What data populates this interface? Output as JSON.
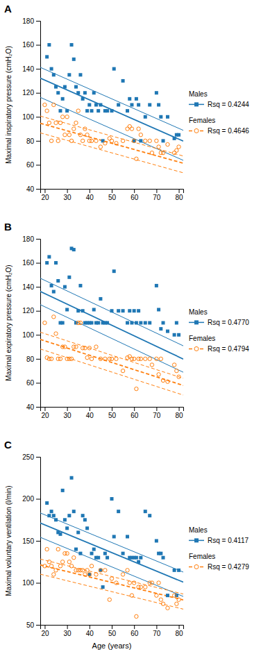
{
  "chart_data": [
    {
      "type": "scatter",
      "title": "A",
      "ylabel": "Maximal inspiratory pressure (cmH₂O)",
      "xlim": [
        18,
        82
      ],
      "xticks": [
        20,
        30,
        40,
        50,
        60,
        70,
        80
      ],
      "ylim": [
        40,
        180
      ],
      "yticks": [
        40,
        60,
        80,
        100,
        120,
        140,
        160,
        180
      ],
      "series": [
        {
          "name": "Males",
          "marker": "square",
          "line_style": "solid",
          "annotation": "Rsq = 0.4244",
          "x": [
            21,
            22,
            23,
            24,
            25,
            26,
            27,
            28,
            29,
            30,
            31,
            32,
            33,
            34,
            35,
            36,
            37,
            38,
            39,
            40,
            41,
            42,
            43,
            44,
            45,
            46,
            47,
            48,
            50,
            51,
            53,
            55,
            57,
            58,
            59,
            60,
            61,
            62,
            63,
            65,
            67,
            70,
            71,
            72,
            73,
            75,
            78,
            79,
            80
          ],
          "values": [
            150,
            160,
            140,
            135,
            125,
            120,
            105,
            115,
            125,
            105,
            135,
            160,
            148,
            125,
            120,
            135,
            115,
            120,
            105,
            110,
            105,
            120,
            110,
            105,
            110,
            80,
            105,
            105,
            105,
            140,
            110,
            130,
            105,
            115,
            110,
            80,
            115,
            110,
            80,
            100,
            110,
            120,
            110,
            100,
            80,
            100,
            82,
            85,
            85
          ],
          "fit": {
            "slope": -0.82,
            "intercept": 147.0,
            "ci_upper_intercept": 156.0,
            "ci_lower_intercept": 131.0
          }
        },
        {
          "name": "Females",
          "marker": "open-circle",
          "line_style": "dashed",
          "annotation": "Rsq = 0.4646",
          "x": [
            20,
            21,
            22,
            23,
            24,
            25,
            26,
            27,
            28,
            29,
            30,
            31,
            32,
            33,
            34,
            35,
            36,
            37,
            38,
            39,
            40,
            41,
            43,
            45,
            47,
            49,
            50,
            52,
            55,
            57,
            58,
            59,
            60,
            61,
            62,
            63,
            65,
            67,
            68,
            70,
            71,
            72,
            73,
            75,
            78,
            79,
            80
          ],
          "values": [
            110,
            105,
            95,
            80,
            110,
            95,
            80,
            95,
            100,
            85,
            100,
            85,
            80,
            90,
            95,
            105,
            85,
            80,
            90,
            85,
            80,
            80,
            80,
            75,
            78,
            82,
            80,
            78,
            80,
            90,
            92,
            90,
            80,
            65,
            90,
            85,
            80,
            80,
            70,
            80,
            75,
            70,
            70,
            77,
            70,
            72,
            75
          ],
          "fit": {
            "slope": -0.52,
            "intercept": 104.0,
            "ci_upper_intercept": 110.0,
            "ci_lower_intercept": 96.0
          }
        }
      ]
    },
    {
      "type": "scatter",
      "title": "B",
      "ylabel": "Maximal expiratory pressure (cmH₂O)",
      "xlim": [
        18,
        82
      ],
      "xticks": [
        20,
        30,
        40,
        50,
        60,
        70,
        80
      ],
      "ylim": [
        40,
        180
      ],
      "yticks": [
        40,
        60,
        80,
        100,
        120,
        140,
        160,
        180
      ],
      "series": [
        {
          "name": "Males",
          "marker": "square",
          "line_style": "solid",
          "annotation": "Rsq = 0.4770",
          "x": [
            21,
            22,
            23,
            24,
            25,
            26,
            27,
            28,
            29,
            30,
            31,
            32,
            33,
            34,
            35,
            36,
            37,
            38,
            39,
            40,
            41,
            42,
            43,
            44,
            45,
            46,
            47,
            48,
            50,
            51,
            53,
            55,
            57,
            58,
            59,
            60,
            61,
            62,
            63,
            65,
            67,
            70,
            71,
            72,
            73,
            75,
            78,
            79,
            80
          ],
          "values": [
            160,
            165,
            141,
            136,
            160,
            145,
            110,
            110,
            140,
            121,
            148,
            172,
            171,
            110,
            120,
            141,
            120,
            110,
            110,
            110,
            110,
            121,
            110,
            110,
            130,
            110,
            110,
            110,
            120,
            153,
            120,
            120,
            110,
            120,
            110,
            120,
            110,
            120,
            110,
            110,
            110,
            141,
            121,
            105,
            110,
            103,
            100,
            110,
            100
          ],
          "fit": {
            "slope": -0.88,
            "intercept": 152.0,
            "ci_upper_intercept": 163.0,
            "ci_lower_intercept": 141.0
          }
        },
        {
          "name": "Females",
          "marker": "open-circle",
          "line_style": "dashed",
          "annotation": "Rsq = 0.4794",
          "x": [
            20,
            21,
            22,
            23,
            24,
            25,
            26,
            27,
            28,
            29,
            30,
            31,
            32,
            33,
            34,
            35,
            36,
            37,
            38,
            39,
            40,
            41,
            43,
            45,
            47,
            49,
            50,
            52,
            55,
            57,
            58,
            59,
            60,
            61,
            62,
            63,
            65,
            67,
            68,
            70,
            71,
            72,
            73,
            75,
            78,
            79,
            80
          ],
          "values": [
            110,
            81,
            80,
            80,
            115,
            101,
            80,
            80,
            90,
            90,
            80,
            80,
            80,
            90,
            90,
            110,
            110,
            89,
            89,
            81,
            89,
            80,
            90,
            80,
            80,
            80,
            80,
            80,
            70,
            81,
            82,
            80,
            80,
            55,
            80,
            80,
            80,
            80,
            75,
            80,
            67,
            80,
            62,
            61,
            75,
            70,
            65
          ],
          "fit": {
            "slope": -0.6,
            "intercept": 107.0,
            "ci_upper_intercept": 113.0,
            "ci_lower_intercept": 99.0
          }
        }
      ]
    },
    {
      "type": "scatter",
      "title": "C",
      "ylabel": "Maximal voluntary ventilation (l/min)",
      "xlabel": "Age (years)",
      "xlim": [
        18,
        82
      ],
      "xticks": [
        20,
        30,
        40,
        50,
        60,
        70,
        80
      ],
      "ylim": [
        50,
        250
      ],
      "yticks": [
        50,
        100,
        150,
        200,
        250
      ],
      "series": [
        {
          "name": "Males",
          "marker": "square",
          "line_style": "solid",
          "annotation": "Rsq = 0.4117",
          "x": [
            21,
            22,
            23,
            24,
            25,
            26,
            27,
            28,
            29,
            30,
            31,
            32,
            33,
            34,
            35,
            36,
            37,
            38,
            39,
            40,
            41,
            42,
            43,
            44,
            45,
            46,
            47,
            48,
            50,
            51,
            53,
            55,
            57,
            58,
            59,
            60,
            61,
            62,
            63,
            65,
            67,
            70,
            71,
            72,
            73,
            75,
            78,
            79,
            80
          ],
          "values": [
            195,
            180,
            185,
            180,
            175,
            160,
            158,
            210,
            175,
            165,
            180,
            225,
            185,
            140,
            160,
            135,
            180,
            175,
            165,
            110,
            135,
            140,
            130,
            130,
            115,
            95,
            135,
            130,
            200,
            155,
            185,
            135,
            155,
            130,
            130,
            130,
            130,
            125,
            130,
            185,
            180,
            150,
            135,
            135,
            130,
            85,
            115,
            85,
            115
          ],
          "fit": {
            "slope": -1.1,
            "intercept": 191.0,
            "ci_upper_intercept": 203.0,
            "ci_lower_intercept": 174.0
          }
        },
        {
          "name": "Females",
          "marker": "open-circle",
          "line_style": "dashed",
          "annotation": "Rsq = 0.4279",
          "x": [
            20,
            21,
            22,
            23,
            24,
            25,
            26,
            27,
            28,
            29,
            30,
            31,
            32,
            33,
            34,
            35,
            36,
            37,
            38,
            39,
            40,
            41,
            43,
            45,
            47,
            49,
            50,
            52,
            55,
            57,
            58,
            59,
            60,
            61,
            62,
            63,
            65,
            67,
            68,
            70,
            71,
            72,
            73,
            75,
            78,
            79,
            80
          ],
          "values": [
            120,
            140,
            125,
            120,
            110,
            115,
            140,
            120,
            125,
            135,
            135,
            125,
            120,
            130,
            115,
            115,
            115,
            115,
            110,
            115,
            110,
            120,
            110,
            115,
            115,
            80,
            105,
            100,
            110,
            115,
            100,
            85,
            100,
            60,
            95,
            95,
            95,
            100,
            100,
            85,
            100,
            80,
            75,
            70,
            85,
            75,
            80
          ],
          "fit": {
            "slope": -0.65,
            "intercept": 133.0,
            "ci_upper_intercept": 140.0,
            "ci_lower_intercept": 122.0
          }
        }
      ]
    }
  ]
}
